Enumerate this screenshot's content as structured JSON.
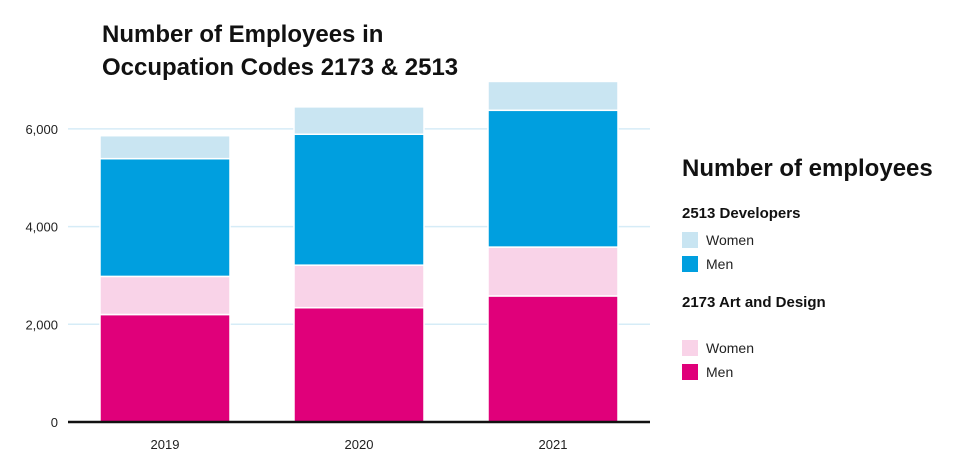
{
  "chart_data": {
    "type": "bar",
    "stacked": true,
    "title_lines": [
      "Number of Employees in",
      "Occupation Codes 2173 & 2513"
    ],
    "categories": [
      "2019",
      "2020",
      "2021"
    ],
    "ylim": [
      0,
      7000
    ],
    "yticks": [
      0,
      2000,
      4000,
      6000
    ],
    "ytick_labels": [
      "0",
      "2,000",
      "4,000",
      "6,000"
    ],
    "grid": true,
    "series": [
      {
        "name": "2173 Art and Design – Men",
        "group": "2173 Art and Design",
        "label": "Men",
        "color": "#e0007a",
        "values": [
          2200,
          2340,
          2580
        ]
      },
      {
        "name": "2173 Art and Design – Women",
        "group": "2173 Art and Design",
        "label": "Women",
        "color": "#f9d3e8",
        "values": [
          780,
          870,
          1000
        ]
      },
      {
        "name": "2513 Developers – Men",
        "group": "2513 Developers",
        "label": "Men",
        "color": "#009fdf",
        "values": [
          2410,
          2680,
          2800
        ]
      },
      {
        "name": "2513 Developers – Women",
        "group": "2513 Developers",
        "label": "Women",
        "color": "#c9e5f2",
        "values": [
          470,
          560,
          590
        ]
      }
    ],
    "legend": {
      "title": "Number of employees",
      "position": "right",
      "groups": [
        {
          "name": "2513 Developers",
          "items": [
            {
              "label": "Women",
              "color": "#c9e5f2"
            },
            {
              "label": "Men",
              "color": "#009fdf"
            }
          ]
        },
        {
          "name": "2173 Art and Design",
          "items": [
            {
              "label": "Women",
              "color": "#f9d3e8"
            },
            {
              "label": "Men",
              "color": "#e0007a"
            }
          ]
        }
      ]
    },
    "colors": {
      "grid": "#d6ecf7",
      "axis": "#111111"
    }
  }
}
